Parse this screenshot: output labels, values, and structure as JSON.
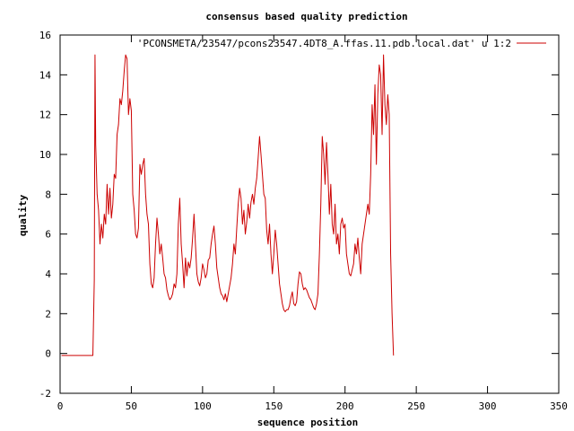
{
  "chart_data": {
    "type": "line",
    "title": "consensus based quality prediction",
    "xlabel": "sequence position",
    "ylabel": "quality",
    "xlim": [
      0,
      350
    ],
    "ylim": [
      -2,
      16
    ],
    "xticks": [
      0,
      50,
      100,
      150,
      200,
      250,
      300,
      350
    ],
    "yticks": [
      -2,
      0,
      2,
      4,
      6,
      8,
      10,
      12,
      14,
      16
    ],
    "grid": false,
    "legend_position": "top-right",
    "series": [
      {
        "name": "'PCONSMETA/23547/pcons23547.4DT8_A.ffas.11.pdb.local.dat' u 1:2",
        "color": "#cc0000",
        "points": [
          [
            1,
            -0.1
          ],
          [
            23,
            -0.1
          ],
          [
            24,
            3.7
          ],
          [
            24.5,
            15.0
          ],
          [
            25,
            10.5
          ],
          [
            26,
            8.0
          ],
          [
            27,
            7.2
          ],
          [
            28,
            5.5
          ],
          [
            29,
            6.5
          ],
          [
            30,
            5.8
          ],
          [
            31,
            7.0
          ],
          [
            32,
            6.5
          ],
          [
            33,
            8.5
          ],
          [
            34,
            7.0
          ],
          [
            35,
            8.3
          ],
          [
            36,
            6.8
          ],
          [
            37,
            7.5
          ],
          [
            38,
            9.0
          ],
          [
            39,
            8.8
          ],
          [
            40,
            11.0
          ],
          [
            41,
            11.5
          ],
          [
            42,
            12.8
          ],
          [
            43,
            12.5
          ],
          [
            44,
            13.2
          ],
          [
            45,
            14.2
          ],
          [
            46,
            15.0
          ],
          [
            47,
            14.8
          ],
          [
            48,
            12.0
          ],
          [
            49,
            12.8
          ],
          [
            50,
            12.2
          ],
          [
            51,
            8.0
          ],
          [
            52,
            7.2
          ],
          [
            53,
            6.0
          ],
          [
            54,
            5.8
          ],
          [
            55,
            6.3
          ],
          [
            56,
            9.5
          ],
          [
            57,
            9.0
          ],
          [
            58,
            9.5
          ],
          [
            59,
            9.8
          ],
          [
            60,
            8.0
          ],
          [
            61,
            7.0
          ],
          [
            62,
            6.5
          ],
          [
            63,
            4.5
          ],
          [
            64,
            3.5
          ],
          [
            65,
            3.3
          ],
          [
            66,
            3.8
          ],
          [
            67,
            5.5
          ],
          [
            68,
            6.8
          ],
          [
            69,
            6.0
          ],
          [
            70,
            5.0
          ],
          [
            71,
            5.5
          ],
          [
            72,
            4.8
          ],
          [
            73,
            4.0
          ],
          [
            74,
            3.8
          ],
          [
            75,
            3.2
          ],
          [
            76,
            2.9
          ],
          [
            77,
            2.7
          ],
          [
            78,
            2.8
          ],
          [
            79,
            3.0
          ],
          [
            80,
            3.5
          ],
          [
            81,
            3.3
          ],
          [
            82,
            4.0
          ],
          [
            83,
            6.5
          ],
          [
            84,
            7.8
          ],
          [
            85,
            5.5
          ],
          [
            86,
            4.5
          ],
          [
            87,
            3.3
          ],
          [
            88,
            4.8
          ],
          [
            89,
            3.9
          ],
          [
            90,
            4.6
          ],
          [
            91,
            4.3
          ],
          [
            92,
            4.8
          ],
          [
            93,
            5.8
          ],
          [
            94,
            7.0
          ],
          [
            95,
            5.5
          ],
          [
            96,
            4.0
          ],
          [
            97,
            3.6
          ],
          [
            98,
            3.4
          ],
          [
            99,
            3.8
          ],
          [
            100,
            4.5
          ],
          [
            101,
            4.2
          ],
          [
            102,
            3.8
          ],
          [
            103,
            4.0
          ],
          [
            104,
            4.7
          ],
          [
            105,
            4.8
          ],
          [
            106,
            5.5
          ],
          [
            107,
            6.0
          ],
          [
            108,
            6.4
          ],
          [
            109,
            5.5
          ],
          [
            110,
            4.3
          ],
          [
            111,
            3.8
          ],
          [
            112,
            3.3
          ],
          [
            113,
            3.0
          ],
          [
            114,
            2.9
          ],
          [
            115,
            2.7
          ],
          [
            116,
            3.0
          ],
          [
            117,
            2.6
          ],
          [
            118,
            3.0
          ],
          [
            119,
            3.4
          ],
          [
            120,
            3.8
          ],
          [
            121,
            4.5
          ],
          [
            122,
            5.5
          ],
          [
            123,
            5.0
          ],
          [
            124,
            6.3
          ],
          [
            125,
            7.5
          ],
          [
            126,
            8.3
          ],
          [
            127,
            7.8
          ],
          [
            128,
            6.5
          ],
          [
            129,
            7.2
          ],
          [
            130,
            6.0
          ],
          [
            131,
            6.6
          ],
          [
            132,
            7.5
          ],
          [
            133,
            6.8
          ],
          [
            134,
            7.6
          ],
          [
            135,
            8.0
          ],
          [
            136,
            7.5
          ],
          [
            137,
            8.3
          ],
          [
            138,
            8.8
          ],
          [
            139,
            9.8
          ],
          [
            140,
            10.9
          ],
          [
            141,
            10.0
          ],
          [
            142,
            9.0
          ],
          [
            143,
            8.0
          ],
          [
            144,
            7.8
          ],
          [
            145,
            6.2
          ],
          [
            146,
            5.5
          ],
          [
            147,
            6.5
          ],
          [
            148,
            5.0
          ],
          [
            149,
            4.0
          ],
          [
            150,
            5.0
          ],
          [
            151,
            6.2
          ],
          [
            152,
            5.5
          ],
          [
            153,
            4.5
          ],
          [
            154,
            3.5
          ],
          [
            155,
            3.0
          ],
          [
            156,
            2.5
          ],
          [
            157,
            2.2
          ],
          [
            158,
            2.1
          ],
          [
            159,
            2.2
          ],
          [
            160,
            2.2
          ],
          [
            161,
            2.4
          ],
          [
            162,
            2.8
          ],
          [
            163,
            3.1
          ],
          [
            164,
            2.5
          ],
          [
            165,
            2.4
          ],
          [
            166,
            2.6
          ],
          [
            167,
            3.5
          ],
          [
            168,
            4.1
          ],
          [
            169,
            4.0
          ],
          [
            170,
            3.5
          ],
          [
            171,
            3.2
          ],
          [
            172,
            3.3
          ],
          [
            173,
            3.2
          ],
          [
            174,
            3.0
          ],
          [
            175,
            2.8
          ],
          [
            176,
            2.7
          ],
          [
            177,
            2.5
          ],
          [
            178,
            2.3
          ],
          [
            179,
            2.2
          ],
          [
            180,
            2.5
          ],
          [
            181,
            3.0
          ],
          [
            182,
            5.0
          ],
          [
            183,
            7.5
          ],
          [
            184,
            10.9
          ],
          [
            185,
            10.0
          ],
          [
            186,
            8.5
          ],
          [
            187,
            10.6
          ],
          [
            188,
            9.0
          ],
          [
            189,
            7.0
          ],
          [
            190,
            8.5
          ],
          [
            191,
            6.5
          ],
          [
            192,
            6.0
          ],
          [
            193,
            7.5
          ],
          [
            194,
            5.5
          ],
          [
            195,
            6.0
          ],
          [
            196,
            5.0
          ],
          [
            197,
            6.5
          ],
          [
            198,
            6.8
          ],
          [
            199,
            6.3
          ],
          [
            200,
            6.5
          ],
          [
            201,
            5.0
          ],
          [
            202,
            4.5
          ],
          [
            203,
            4.0
          ],
          [
            204,
            3.9
          ],
          [
            205,
            4.2
          ],
          [
            206,
            4.5
          ],
          [
            207,
            5.5
          ],
          [
            208,
            5.0
          ],
          [
            209,
            5.8
          ],
          [
            210,
            4.8
          ],
          [
            211,
            4.0
          ],
          [
            212,
            5.5
          ],
          [
            213,
            6.0
          ],
          [
            214,
            6.5
          ],
          [
            215,
            7.0
          ],
          [
            216,
            7.5
          ],
          [
            217,
            7.0
          ],
          [
            218,
            9.0
          ],
          [
            219,
            12.5
          ],
          [
            220,
            11.0
          ],
          [
            221,
            13.5
          ],
          [
            222,
            9.5
          ],
          [
            223,
            13.0
          ],
          [
            224,
            14.5
          ],
          [
            225,
            14.0
          ],
          [
            226,
            11.0
          ],
          [
            227,
            15.0
          ],
          [
            228,
            12.5
          ],
          [
            229,
            11.5
          ],
          [
            230,
            13.0
          ],
          [
            231,
            12.0
          ],
          [
            232,
            5.0
          ],
          [
            233,
            2.0
          ],
          [
            234,
            -0.1
          ]
        ]
      }
    ]
  }
}
